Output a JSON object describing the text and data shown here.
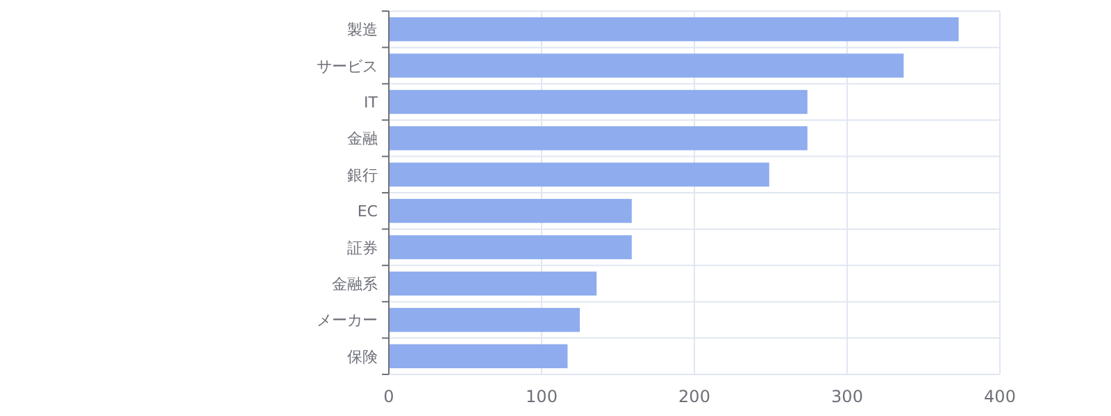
{
  "chart_data": {
    "type": "bar",
    "orientation": "horizontal",
    "categories": [
      "製造",
      "サービス",
      "IT",
      "金融",
      "銀行",
      "EC",
      "証券",
      "金融系",
      "メーカー",
      "保険"
    ],
    "values": [
      373,
      337,
      274,
      274,
      249,
      159,
      159,
      136,
      125,
      117
    ],
    "color": "#8eacee",
    "xlim": [
      0,
      400
    ],
    "xticks": [
      0,
      100,
      200,
      300,
      400
    ],
    "grid": true
  }
}
